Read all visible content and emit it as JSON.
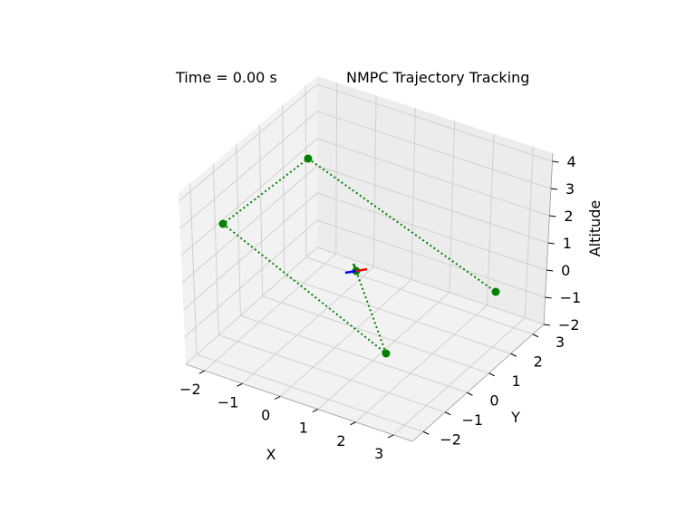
{
  "window": {
    "time_text": "Time = 0.00 s"
  },
  "chart_data": {
    "type": "line3d",
    "title": "NMPC Trajectory Tracking",
    "xlabel": "X",
    "ylabel": "Y",
    "zlabel": "Altitude",
    "xlim": [
      -2.5,
      3.5
    ],
    "ylim": [
      -2.5,
      3.5
    ],
    "zlim": [
      -2,
      4.3
    ],
    "xticks": [
      "−2",
      "−1",
      "0",
      "1",
      "2",
      "3"
    ],
    "yticks": [
      "−2",
      "−1",
      "0",
      "1",
      "2",
      "3"
    ],
    "zticks": [
      "−2",
      "−1",
      "0",
      "1",
      "2",
      "3",
      "4"
    ],
    "grid": true,
    "series": [
      {
        "style": "dotted",
        "color": "#008000",
        "marker": "o",
        "points": [
          {
            "x": 0,
            "y": 0,
            "z": 0
          },
          {
            "x": 2,
            "y": 2,
            "z": 0
          },
          {
            "x": -2,
            "y": 2,
            "z": 3
          },
          {
            "x": -2,
            "y": -2,
            "z": 4
          },
          {
            "x": 2,
            "y": -2,
            "z": 2
          }
        ]
      }
    ],
    "drone": {
      "position": {
        "x": 0,
        "y": 0,
        "z": 0
      },
      "body_axes_colors": [
        "#ff0000",
        "#008000",
        "#0000ff"
      ]
    }
  }
}
